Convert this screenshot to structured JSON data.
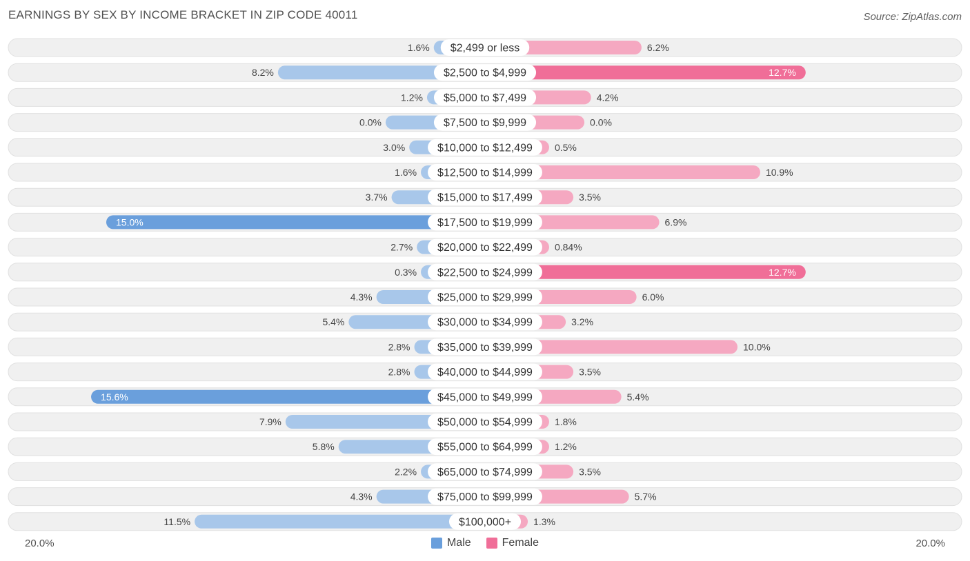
{
  "chart_data": {
    "type": "bar",
    "orientation": "horizontal-diverging",
    "title": "EARNINGS BY SEX BY INCOME BRACKET IN ZIP CODE 40011",
    "source": "Source: ZipAtlas.com",
    "categories": [
      "$2,499 or less",
      "$2,500 to $4,999",
      "$5,000 to $7,499",
      "$7,500 to $9,999",
      "$10,000 to $12,499",
      "$12,500 to $14,999",
      "$15,000 to $17,499",
      "$17,500 to $19,999",
      "$20,000 to $22,499",
      "$22,500 to $24,999",
      "$25,000 to $29,999",
      "$30,000 to $34,999",
      "$35,000 to $39,999",
      "$40,000 to $44,999",
      "$45,000 to $49,999",
      "$50,000 to $54,999",
      "$55,000 to $64,999",
      "$65,000 to $74,999",
      "$75,000 to $99,999",
      "$100,000+"
    ],
    "series": [
      {
        "name": "Male",
        "values": [
          1.6,
          8.2,
          1.2,
          0.0,
          3.0,
          1.6,
          3.7,
          15.0,
          2.7,
          0.3,
          4.3,
          5.4,
          2.8,
          2.8,
          15.6,
          7.9,
          5.8,
          2.2,
          4.3,
          11.5
        ],
        "labels": [
          "1.6%",
          "8.2%",
          "1.2%",
          "0.0%",
          "3.0%",
          "1.6%",
          "3.7%",
          "15.0%",
          "2.7%",
          "0.3%",
          "4.3%",
          "5.4%",
          "2.8%",
          "2.8%",
          "15.6%",
          "7.9%",
          "5.8%",
          "2.2%",
          "4.3%",
          "11.5%"
        ]
      },
      {
        "name": "Female",
        "values": [
          6.2,
          12.7,
          4.2,
          0.0,
          0.5,
          10.9,
          3.5,
          6.9,
          0.84,
          12.7,
          6.0,
          3.2,
          10.0,
          3.5,
          5.4,
          1.8,
          1.2,
          3.5,
          5.7,
          1.3
        ],
        "labels": [
          "6.2%",
          "12.7%",
          "4.2%",
          "0.0%",
          "0.5%",
          "10.9%",
          "3.5%",
          "6.9%",
          "0.84%",
          "12.7%",
          "6.0%",
          "3.2%",
          "10.0%",
          "3.5%",
          "5.4%",
          "1.8%",
          "1.2%",
          "3.5%",
          "5.7%",
          "1.3%"
        ]
      }
    ],
    "axis": {
      "min_label": "20.0%",
      "max_label": "20.0%",
      "range": [
        -20,
        20
      ]
    },
    "legend": [
      {
        "name": "Male",
        "color": "#6a9fdc"
      },
      {
        "name": "Female",
        "color": "#f06e98"
      }
    ],
    "colors": {
      "male_light": "#a8c7ea",
      "male_dark": "#6a9fdc",
      "female_light": "#f5a8c1",
      "female_dark": "#f06e98",
      "row_bg": "#f0f0f0",
      "row_border": "#e0e0e0"
    },
    "legend_placement": "bottom-center"
  }
}
